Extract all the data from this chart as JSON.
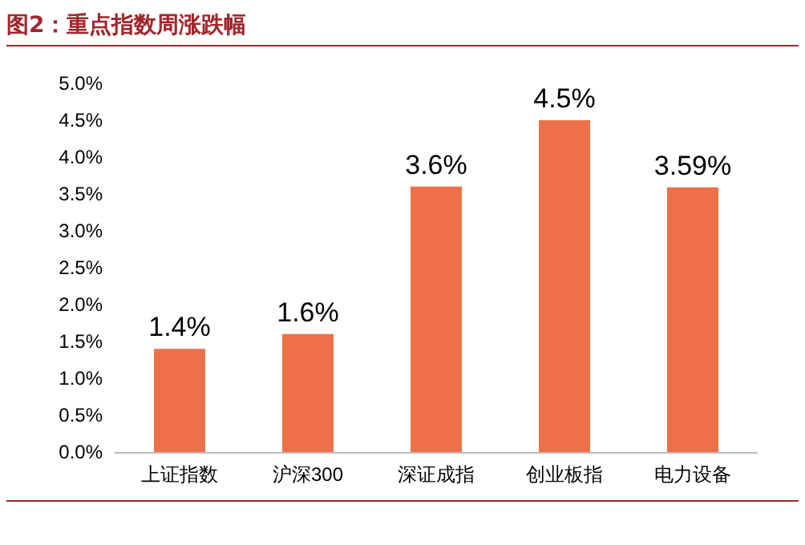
{
  "chart_data": {
    "type": "bar",
    "title": "图2：重点指数周涨跌幅",
    "categories": [
      "上证指数",
      "沪深300",
      "深证成指",
      "创业板指",
      "电力设备"
    ],
    "values": [
      1.4,
      1.6,
      3.6,
      4.5,
      3.59
    ],
    "value_labels": [
      "1.4%",
      "1.6%",
      "3.6%",
      "4.5%",
      "3.59%"
    ],
    "color": "#ee7048",
    "ylim": [
      0,
      5
    ],
    "yticks": [
      {
        "value": 0,
        "label": "0.0%"
      },
      {
        "value": 0.5,
        "label": "0.5%"
      },
      {
        "value": 1,
        "label": "1.0%"
      },
      {
        "value": 1.5,
        "label": "1.5%"
      },
      {
        "value": 2,
        "label": "2.0%"
      },
      {
        "value": 2.5,
        "label": "2.5%"
      },
      {
        "value": 3,
        "label": "3.0%"
      },
      {
        "value": 3.5,
        "label": "3.5%"
      },
      {
        "value": 4,
        "label": "4.0%"
      },
      {
        "value": 4.5,
        "label": "4.5%"
      },
      {
        "value": 5,
        "label": "5.0%"
      }
    ],
    "grid": false
  }
}
